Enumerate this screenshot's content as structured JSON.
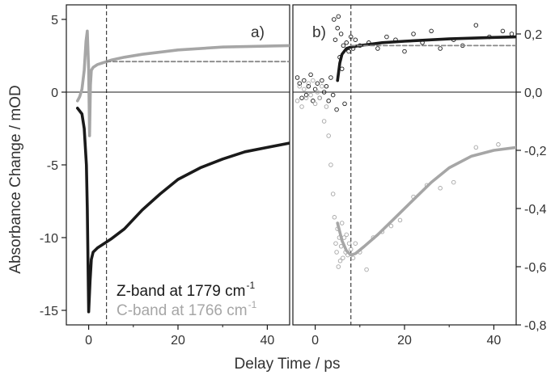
{
  "chart_data": {
    "type": "line",
    "xlabel": "Delay Time / ps",
    "ylabel_left": "Absorbance Change / mOD",
    "panels": [
      {
        "label": "a)",
        "xlim": [
          -5,
          45
        ],
        "ylim": [
          -16,
          6
        ],
        "x_ticks": [
          0,
          20,
          40
        ],
        "y_ticks": [
          5,
          0,
          -5,
          -10,
          -15
        ],
        "y_tick_labels": [
          "5",
          "0",
          "-5",
          "-10",
          "-15"
        ],
        "y_axis_side": "left",
        "zero_line": true,
        "vline_x": 4,
        "series": [
          {
            "name": "Z-band at 1779 cm-1",
            "color": "#1a1a1a",
            "x": [
              -2.5,
              -1.5,
              -1,
              -0.5,
              -0.3,
              0,
              0.3,
              0.6,
              1,
              2,
              3,
              5,
              8,
              12,
              16,
              20,
              25,
              30,
              35,
              40,
              45
            ],
            "y": [
              -1.1,
              -1.5,
              -2.5,
              -5,
              -8,
              -15.1,
              -13,
              -11.5,
              -11,
              -10.7,
              -10.5,
              -10.1,
              -9.4,
              -8.1,
              -7.0,
              -6.0,
              -5.2,
              -4.6,
              -4.1,
              -3.8,
              -3.5
            ]
          },
          {
            "name": "C-band at 1766 cm-1",
            "color": "#a6a6a6",
            "x": [
              -2.5,
              -2,
              -1.5,
              -1,
              -0.6,
              -0.3,
              0,
              0.2,
              0.4,
              0.6,
              1,
              2,
              3,
              5,
              8,
              12,
              20,
              30,
              45
            ],
            "y": [
              -0.6,
              -0.3,
              0.2,
              1.5,
              3.5,
              4.2,
              1.5,
              -3.0,
              0.5,
              1.5,
              1.7,
              1.9,
              2.0,
              2.2,
              2.4,
              2.6,
              2.9,
              3.1,
              3.2
            ]
          },
          {
            "name": "C-band extrapolation",
            "color": "#888888",
            "style": "dashed",
            "x": [
              4,
              45
            ],
            "y": [
              2.1,
              2.1
            ]
          }
        ]
      },
      {
        "label": "b)",
        "xlim": [
          -5,
          45
        ],
        "ylim": [
          -0.8,
          0.3
        ],
        "x_ticks": [
          0,
          20,
          40
        ],
        "y_ticks": [
          0.2,
          0.0,
          -0.2,
          -0.4,
          -0.6,
          -0.8
        ],
        "y_tick_labels": [
          "0,2",
          "0,0",
          "-0,2",
          "-0,4",
          "-0,6",
          "-0,8"
        ],
        "y_axis_side": "right",
        "zero_line": true,
        "vline_x": 8,
        "series": [
          {
            "name": "Z-band fit",
            "color": "#1a1a1a",
            "x": [
              5,
              5.5,
              6,
              7,
              8,
              10,
              15,
              20,
              30,
              40,
              45
            ],
            "y": [
              0.04,
              0.1,
              0.13,
              0.15,
              0.155,
              0.16,
              0.17,
              0.175,
              0.183,
              0.188,
              0.19
            ]
          },
          {
            "name": "Z-band extrapolation",
            "color": "#888888",
            "style": "dashed",
            "x": [
              8,
              45
            ],
            "y": [
              0.16,
              0.16
            ]
          },
          {
            "name": "C-band fit",
            "color": "#a6a6a6",
            "x": [
              5,
              6,
              7,
              8,
              9,
              11,
              14,
              18,
              22,
              26,
              30,
              35,
              40,
              45
            ],
            "y": [
              -0.45,
              -0.51,
              -0.545,
              -0.56,
              -0.555,
              -0.53,
              -0.49,
              -0.43,
              -0.37,
              -0.31,
              -0.26,
              -0.22,
              -0.2,
              -0.19
            ]
          }
        ],
        "scatter": [
          {
            "name": "Z-band data",
            "color": "#1a1a1a",
            "x": [
              -4,
              -3.5,
              -3,
              -2.5,
              -2,
              -1.5,
              -1,
              -0.5,
              0,
              0.5,
              1,
              1.5,
              2,
              2.5,
              3,
              3.5,
              4,
              4.2,
              4.5,
              4.8,
              5,
              5.2,
              5.5,
              5.8,
              6,
              6.3,
              6.6,
              7,
              7.5,
              8,
              8.5,
              9,
              10,
              12,
              14,
              16,
              18,
              20,
              22,
              24,
              26,
              28,
              31,
              33,
              36,
              39,
              42,
              44
            ],
            "y": [
              0.05,
              0.03,
              -0.02,
              0.04,
              -0.01,
              0.02,
              0.06,
              -0.03,
              0.01,
              0.03,
              -0.02,
              0.04,
              0.0,
              0.02,
              -0.03,
              0.05,
              -0.01,
              0.25,
              0.18,
              -0.06,
              0.22,
              0.26,
              0.12,
              0.2,
              0.08,
              0.16,
              -0.04,
              0.17,
              0.14,
              0.19,
              0.15,
              0.18,
              0.16,
              0.17,
              0.15,
              0.19,
              0.18,
              0.14,
              0.2,
              0.17,
              0.21,
              0.15,
              0.18,
              0.16,
              0.23,
              0.19,
              0.21,
              0.2
            ]
          },
          {
            "name": "C-band data",
            "color": "#a6a6a6",
            "x": [
              -4,
              -3.5,
              -3,
              -2.5,
              -2,
              -1.5,
              -1,
              -0.5,
              0,
              0.5,
              1,
              1.5,
              2,
              2.5,
              3,
              3.5,
              4,
              4.3,
              4.6,
              4.8,
              5,
              5.2,
              5.4,
              5.6,
              5.8,
              6,
              6.2,
              6.5,
              6.8,
              7,
              7.3,
              7.6,
              8,
              8.5,
              9,
              10,
              11.5,
              13,
              15,
              17,
              19,
              22,
              25,
              28,
              31,
              36,
              41
            ],
            "y": [
              -0.03,
              0.02,
              -0.05,
              0.01,
              -0.02,
              0.03,
              -0.01,
              0.04,
              -0.04,
              0.0,
              -0.02,
              0.02,
              -0.1,
              -0.05,
              -0.15,
              -0.25,
              -0.35,
              -0.43,
              -0.52,
              -0.55,
              -0.47,
              -0.6,
              -0.5,
              -0.58,
              -0.53,
              -0.45,
              -0.57,
              -0.5,
              -0.55,
              -0.49,
              -0.56,
              -0.52,
              -0.54,
              -0.57,
              -0.52,
              -0.55,
              -0.61,
              -0.5,
              -0.48,
              -0.46,
              -0.44,
              -0.36,
              -0.32,
              -0.33,
              -0.31,
              -0.19,
              -0.18
            ]
          }
        ]
      }
    ],
    "legend": {
      "position": "bottom-left panel, lower-right",
      "entries": [
        {
          "text": "Z-band at 1779 cm",
          "sup": "-1",
          "color": "#1a1a1a"
        },
        {
          "text": "C-band at 1766 cm",
          "sup": "-1",
          "color": "#a6a6a6"
        }
      ]
    }
  }
}
